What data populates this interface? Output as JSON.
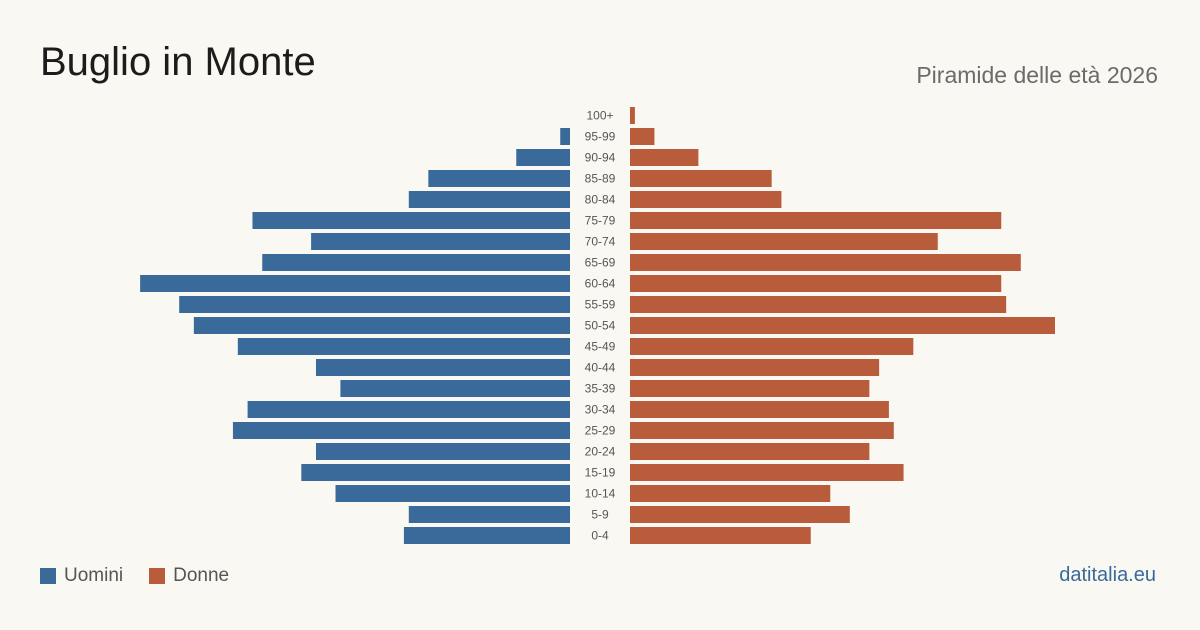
{
  "header": {
    "title": "Buglio in Monte",
    "subtitle": "Piramide delle età 2026"
  },
  "legend": {
    "men_label": "Uomini",
    "women_label": "Donne"
  },
  "footer": {
    "site": "datitalia.eu"
  },
  "colors": {
    "men": "#3a6a9a",
    "women": "#b95c3c",
    "background": "#faf8f3"
  },
  "chart_data": {
    "type": "bar",
    "orientation": "horizontal-pyramid",
    "categories": [
      "100+",
      "95-99",
      "90-94",
      "85-89",
      "80-84",
      "75-79",
      "70-74",
      "65-69",
      "60-64",
      "55-59",
      "50-54",
      "45-49",
      "40-44",
      "35-39",
      "30-34",
      "25-29",
      "20-24",
      "15-19",
      "10-14",
      "5-9",
      "0-4"
    ],
    "series": [
      {
        "name": "Uomini",
        "values": [
          0,
          1,
          5.5,
          14.5,
          16.5,
          32.5,
          26.5,
          31.5,
          44,
          40,
          38.5,
          34,
          26,
          23.5,
          33,
          34.5,
          26,
          27.5,
          24,
          16.5,
          17
        ]
      },
      {
        "name": "Donne",
        "values": [
          0.5,
          2.5,
          7,
          14.5,
          15.5,
          38,
          31.5,
          40,
          38,
          38.5,
          43.5,
          29,
          25.5,
          24.5,
          26.5,
          27,
          24.5,
          28,
          20.5,
          22.5,
          18.5
        ]
      }
    ]
  }
}
